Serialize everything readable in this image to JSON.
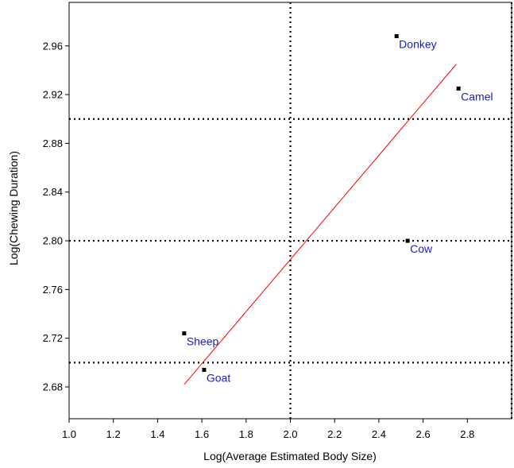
{
  "chart_data": {
    "type": "scatter",
    "title": "",
    "xlabel": "Log(Average Estimated Body Size)",
    "ylabel": "Log(Chewing Duration)",
    "xlim": [
      1.0,
      3.0
    ],
    "ylim": [
      2.655,
      2.995
    ],
    "xticks": [
      "1.0",
      "1.2",
      "1.4",
      "1.6",
      "1.8",
      "2.0",
      "2.2",
      "2.4",
      "2.6",
      "2.8"
    ],
    "yticks": [
      "2.68",
      "2.72",
      "2.76",
      "2.80",
      "2.84",
      "2.88",
      "2.92",
      "2.96"
    ],
    "points": [
      {
        "label": "Donkey",
        "x": 2.48,
        "y": 2.968
      },
      {
        "label": "Camel",
        "x": 2.76,
        "y": 2.925
      },
      {
        "label": "Cow",
        "x": 2.53,
        "y": 2.8
      },
      {
        "label": "Sheep",
        "x": 1.52,
        "y": 2.724
      },
      {
        "label": "Goat",
        "x": 1.61,
        "y": 2.694
      }
    ],
    "regression_line": {
      "x1": 1.52,
      "y1": 2.682,
      "x2": 2.75,
      "y2": 2.945
    },
    "reference_lines": {
      "vertical": [
        2.0
      ],
      "horizontal": [
        2.7,
        2.8,
        2.9
      ]
    },
    "grid": false,
    "colors": {
      "points": "#000000",
      "labels": "#1a1acc",
      "regression": "#ff0000",
      "reference": "#000000"
    }
  }
}
